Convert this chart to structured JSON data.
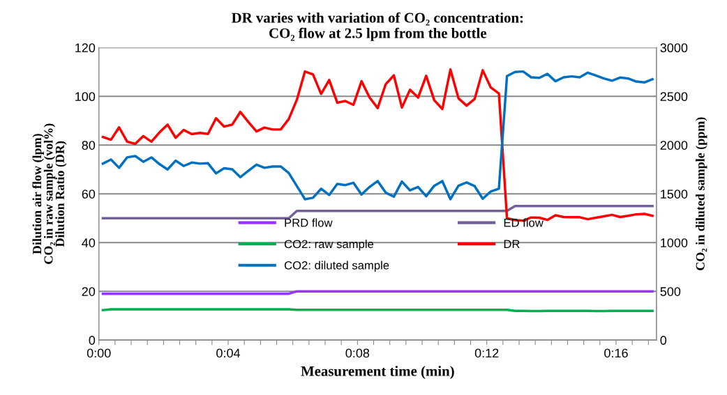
{
  "chart_data": {
    "type": "line",
    "title": "DR varies with variation of CO₂ concentration:\nCO₂ flow at 2.5 lpm from the bottle",
    "xlabel": "Measurement time (min)",
    "ylabel": "Dilution air flow (lpm)\nCO₂ in raw sample (vol%)\nDilution Ratio (DR)",
    "y2label": "CO₂ in diluted sample (ppm)",
    "x": [
      0.125,
      0.375,
      0.625,
      0.875,
      1.125,
      1.375,
      1.625,
      1.875,
      2.125,
      2.375,
      2.625,
      2.875,
      3.125,
      3.375,
      3.625,
      3.875,
      4.125,
      4.375,
      4.625,
      4.875,
      5.125,
      5.375,
      5.625,
      5.875,
      6.125,
      6.375,
      6.625,
      6.875,
      7.125,
      7.375,
      7.625,
      7.875,
      8.125,
      8.375,
      8.625,
      8.875,
      9.125,
      9.375,
      9.625,
      9.875,
      10.125,
      10.375,
      10.625,
      10.875,
      11.125,
      11.375,
      11.625,
      11.875,
      12.125,
      12.375,
      12.625,
      12.875,
      13.125,
      13.375,
      13.625,
      13.875,
      14.125,
      14.375,
      14.625,
      14.875,
      15.125,
      15.375,
      15.625,
      15.875,
      16.125,
      16.375,
      16.625,
      16.875,
      17.125
    ],
    "xlim": [
      0,
      17.25
    ],
    "xticks": [
      {
        "value": 0,
        "label": "0:00"
      },
      {
        "value": 0.5,
        "label": null
      },
      {
        "value": 1,
        "label": null
      },
      {
        "value": 1.5,
        "label": null
      },
      {
        "value": 2,
        "label": null
      },
      {
        "value": 2.5,
        "label": null
      },
      {
        "value": 3,
        "label": null
      },
      {
        "value": 3.5,
        "label": null
      },
      {
        "value": 4,
        "label": "0:04"
      },
      {
        "value": 4.5,
        "label": null
      },
      {
        "value": 5,
        "label": null
      },
      {
        "value": 5.5,
        "label": null
      },
      {
        "value": 6,
        "label": null
      },
      {
        "value": 6.5,
        "label": null
      },
      {
        "value": 7,
        "label": null
      },
      {
        "value": 7.5,
        "label": null
      },
      {
        "value": 8,
        "label": "0:08"
      },
      {
        "value": 8.5,
        "label": null
      },
      {
        "value": 9,
        "label": null
      },
      {
        "value": 9.5,
        "label": null
      },
      {
        "value": 10,
        "label": null
      },
      {
        "value": 10.5,
        "label": null
      },
      {
        "value": 11,
        "label": null
      },
      {
        "value": 11.5,
        "label": null
      },
      {
        "value": 12,
        "label": "0:12"
      },
      {
        "value": 12.5,
        "label": null
      },
      {
        "value": 13,
        "label": null
      },
      {
        "value": 13.5,
        "label": null
      },
      {
        "value": 14,
        "label": null
      },
      {
        "value": 14.5,
        "label": null
      },
      {
        "value": 15,
        "label": null
      },
      {
        "value": 15.5,
        "label": null
      },
      {
        "value": 16,
        "label": "0:16"
      },
      {
        "value": 16.5,
        "label": null
      },
      {
        "value": 17,
        "label": null
      }
    ],
    "ylim": [
      0,
      120
    ],
    "yticks": [
      0,
      20,
      40,
      60,
      80,
      100,
      120
    ],
    "y2lim": [
      0,
      3000
    ],
    "y2ticks": [
      0,
      500,
      1000,
      1500,
      2000,
      2500,
      3000
    ],
    "grid": "y",
    "legend": "center",
    "marker": "none",
    "line_style": "solid",
    "series": [
      {
        "name": "PRD flow",
        "color": "#9933ff",
        "values": [
          19,
          19,
          19,
          19,
          19,
          19,
          19,
          19,
          19,
          19,
          19,
          19,
          19,
          19,
          19,
          19,
          19,
          19,
          19,
          19,
          19,
          19,
          19,
          19,
          20,
          20,
          20,
          20,
          20,
          20,
          20,
          20,
          20,
          20,
          20,
          20,
          20,
          20,
          20,
          20,
          20,
          20,
          20,
          20,
          20,
          20,
          20,
          20,
          20,
          20,
          20,
          20,
          20,
          20,
          20,
          20,
          20,
          20,
          20,
          20,
          20,
          20,
          20,
          20,
          20,
          20,
          20,
          20,
          20
        ]
      },
      {
        "name": "ED flow",
        "color": "#72609a",
        "values": [
          50,
          50,
          50,
          50,
          50,
          50,
          50,
          50,
          50,
          50,
          50,
          50,
          50,
          50,
          50,
          50,
          50,
          50,
          50,
          50,
          50,
          50,
          50,
          50,
          53,
          53,
          53,
          53,
          53,
          53,
          53,
          53,
          53,
          53,
          53,
          53,
          53,
          53,
          53,
          53,
          53,
          53,
          53,
          53,
          53,
          53,
          53,
          53,
          53,
          53,
          53,
          55,
          55,
          55,
          55,
          55,
          55,
          55,
          55,
          55,
          55,
          55,
          55,
          55,
          55,
          55,
          55,
          55,
          55
        ]
      },
      {
        "name": "CO2: raw sample",
        "color": "#00b050",
        "values": [
          12.3,
          12.6,
          12.6,
          12.6,
          12.6,
          12.6,
          12.6,
          12.6,
          12.6,
          12.6,
          12.6,
          12.6,
          12.6,
          12.6,
          12.6,
          12.6,
          12.6,
          12.6,
          12.6,
          12.6,
          12.6,
          12.6,
          12.6,
          12.6,
          12.4,
          12.4,
          12.4,
          12.4,
          12.4,
          12.4,
          12.4,
          12.4,
          12.4,
          12.4,
          12.4,
          12.4,
          12.4,
          12.4,
          12.4,
          12.4,
          12.4,
          12.4,
          12.4,
          12.4,
          12.4,
          12.4,
          12.4,
          12.4,
          12.4,
          12.4,
          12.4,
          12.0,
          12.0,
          11.9,
          11.9,
          12.0,
          12.0,
          12.0,
          12.0,
          12.0,
          12.0,
          11.9,
          11.9,
          12.0,
          12.0,
          12.0,
          12.0,
          12.0,
          12.0
        ]
      },
      {
        "name": "DR",
        "color": "#ff0000",
        "values": [
          83.3,
          82.2,
          87.3,
          81.4,
          80.5,
          83.7,
          81.4,
          85.2,
          88.4,
          83.0,
          86.2,
          84.5,
          85.0,
          84.6,
          91.0,
          87.6,
          88.4,
          93.6,
          89.5,
          85.6,
          87.2,
          86.4,
          86.4,
          90.7,
          98.6,
          110.2,
          109.0,
          101.0,
          106.7,
          97.4,
          98.1,
          96.5,
          106.2,
          99.5,
          95.2,
          105.0,
          108.6,
          95.4,
          102.7,
          99.5,
          108.4,
          98.4,
          94.8,
          111.0,
          99.2,
          96.2,
          98.9,
          110.7,
          103.6,
          101.2,
          50.0,
          49.2,
          49.0,
          50.3,
          50.2,
          49.3,
          51.2,
          50.5,
          50.4,
          50.4,
          49.6,
          50.2,
          50.8,
          51.4,
          50.5,
          51.0,
          51.6,
          51.8,
          51.0
        ]
      },
      {
        "name": "CO2: diluted sample",
        "color": "#0070c0",
        "axis": "y2",
        "values": [
          1810,
          1852,
          1767,
          1874,
          1888,
          1829,
          1874,
          1805,
          1750,
          1840,
          1786,
          1821,
          1810,
          1814,
          1710,
          1762,
          1752,
          1671,
          1736,
          1800,
          1767,
          1781,
          1781,
          1714,
          1579,
          1445,
          1460,
          1552,
          1488,
          1602,
          1590,
          1614,
          1493,
          1571,
          1631,
          1512,
          1471,
          1626,
          1536,
          1571,
          1476,
          1583,
          1631,
          1445,
          1583,
          1617,
          1579,
          1450,
          1524,
          1552,
          2707,
          2750,
          2755,
          2695,
          2690,
          2731,
          2655,
          2695,
          2705,
          2695,
          2743,
          2714,
          2683,
          2660,
          2693,
          2683,
          2652,
          2643,
          2676
        ]
      }
    ]
  }
}
